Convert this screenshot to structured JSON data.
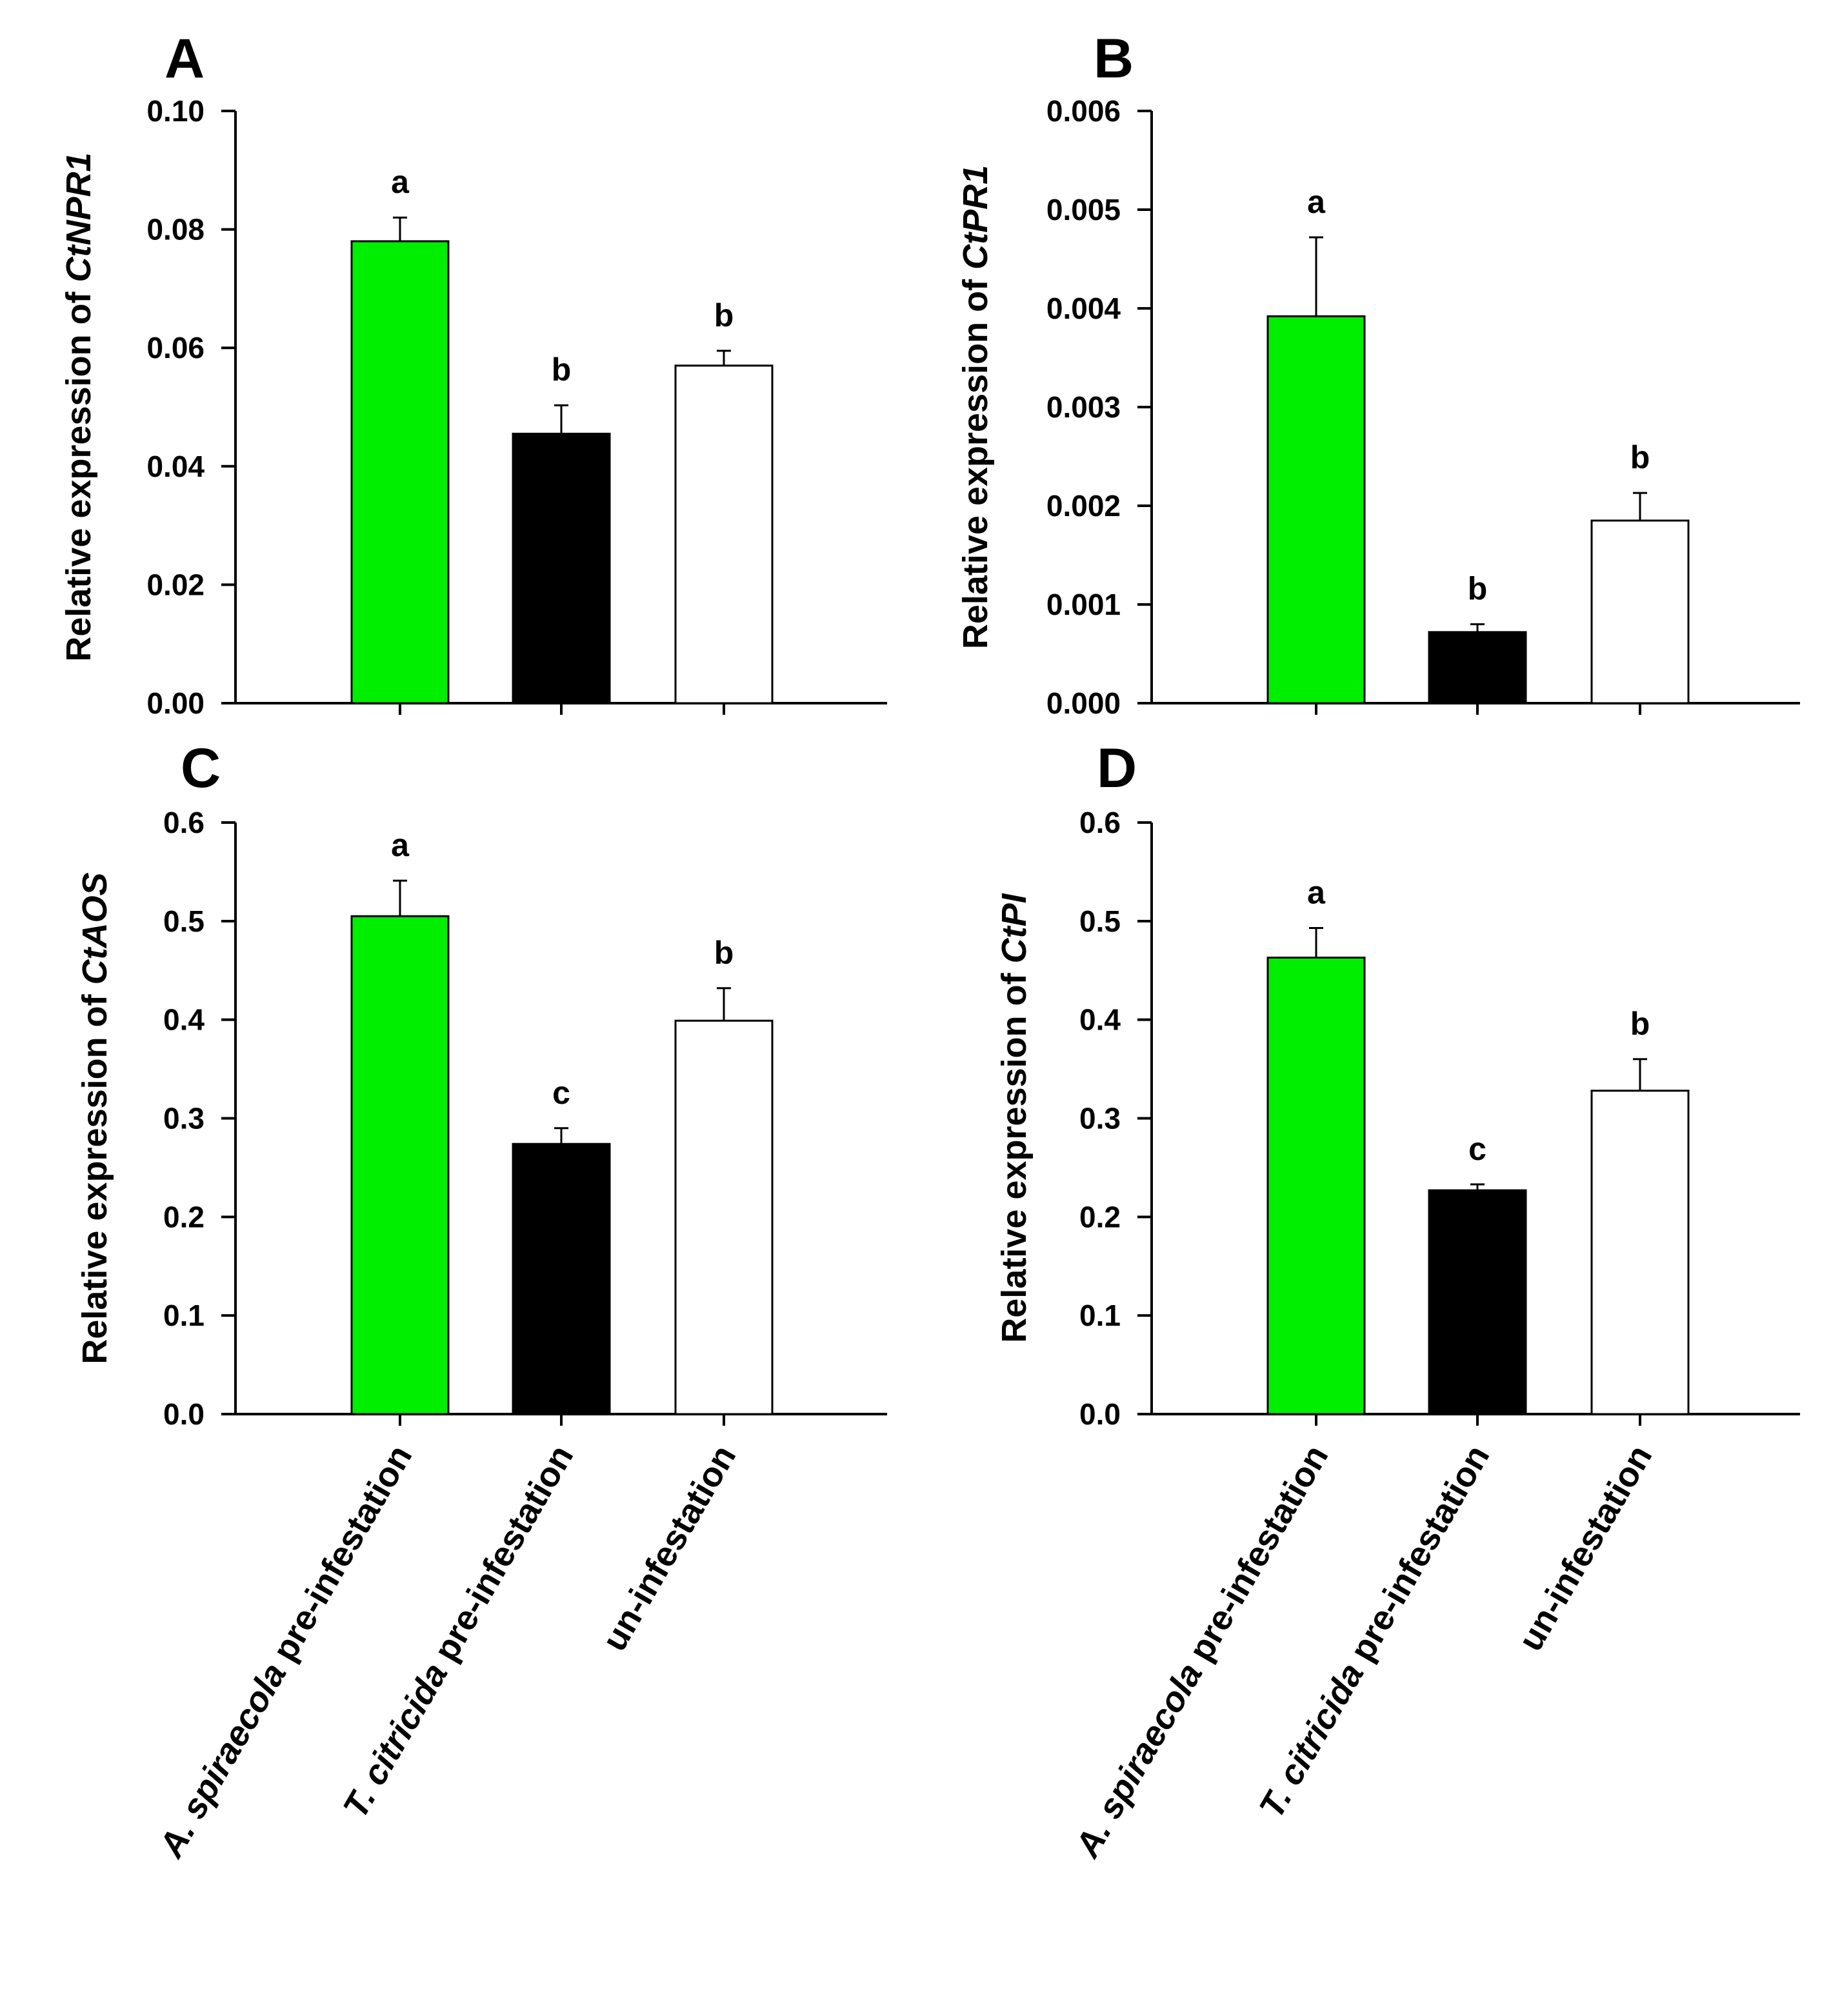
{
  "chart_data": [
    {
      "type": "bar",
      "panel": "A",
      "ylabel_prefix": "Relative expression of ",
      "ylabel_gene": "CtNPR1",
      "ylim": [
        0,
        0.1
      ],
      "yticks": [
        "0.00",
        "0.02",
        "0.04",
        "0.06",
        "0.08",
        "0.10"
      ],
      "yticks_values": [
        0,
        0.02,
        0.04,
        0.06,
        0.08,
        0.1
      ],
      "categories": [
        "A. spiraecola pre-infestation",
        "T. citricida pre-infestation",
        "un-infestation"
      ],
      "values": [
        0.078,
        0.0455,
        0.057
      ],
      "errors": [
        0.004,
        0.0048,
        0.0025
      ],
      "significance": [
        "a",
        "b",
        "b"
      ],
      "show_xlabels": false
    },
    {
      "type": "bar",
      "panel": "B",
      "ylabel_prefix": "Relative expression of ",
      "ylabel_gene": "CtPR1",
      "ylim": [
        0,
        0.006
      ],
      "yticks": [
        "0.000",
        "0.001",
        "0.002",
        "0.003",
        "0.004",
        "0.005",
        "0.006"
      ],
      "yticks_values": [
        0,
        0.001,
        0.002,
        0.003,
        0.004,
        0.005,
        0.006
      ],
      "categories": [
        "A. spiraecola pre-infestation",
        "T. citricida pre-infestation",
        "un-infestation"
      ],
      "values": [
        0.00392,
        0.00072,
        0.00185
      ],
      "errors": [
        0.0008,
        8e-05,
        0.00028
      ],
      "significance": [
        "a",
        "b",
        "b"
      ],
      "show_xlabels": false
    },
    {
      "type": "bar",
      "panel": "C",
      "ylabel_prefix": "Relative expression of ",
      "ylabel_gene": "CtAOS",
      "ylim": [
        0,
        0.6
      ],
      "yticks": [
        "0.0",
        "0.1",
        "0.2",
        "0.3",
        "0.4",
        "0.5",
        "0.6"
      ],
      "yticks_values": [
        0,
        0.1,
        0.2,
        0.3,
        0.4,
        0.5,
        0.6
      ],
      "categories": [
        "A. spiraecola pre-infestation",
        "T. citricida pre-infestation",
        "un-infestation"
      ],
      "values": [
        0.505,
        0.274,
        0.399
      ],
      "errors": [
        0.036,
        0.016,
        0.033
      ],
      "significance": [
        "a",
        "c",
        "b"
      ],
      "show_xlabels": true
    },
    {
      "type": "bar",
      "panel": "D",
      "ylabel_prefix": "Relative expression of ",
      "ylabel_gene": "CtPI",
      "ylim": [
        0,
        0.6
      ],
      "yticks": [
        "0.0",
        "0.1",
        "0.2",
        "0.3",
        "0.4",
        "0.5",
        "0.6"
      ],
      "yticks_values": [
        0,
        0.1,
        0.2,
        0.3,
        0.4,
        0.5,
        0.6
      ],
      "categories": [
        "A. spiraecola pre-infestation",
        "T. citricida pre-infestation",
        "un-infestation"
      ],
      "values": [
        0.463,
        0.227,
        0.328
      ],
      "errors": [
        0.03,
        0.006,
        0.032
      ],
      "significance": [
        "a",
        "c",
        "b"
      ],
      "show_xlabels": true
    }
  ],
  "category_display": [
    {
      "italic": "A. spiraecola",
      "rest": " pre-infestation"
    },
    {
      "italic": "T. citricida",
      "rest": " pre-infestation"
    },
    {
      "italic": "",
      "rest": "un-infestation"
    }
  ],
  "colors": {
    "bar_fills": [
      "#00ee00",
      "#000000",
      "#ffffff"
    ],
    "axis": "#000000",
    "background": "#ffffff"
  }
}
